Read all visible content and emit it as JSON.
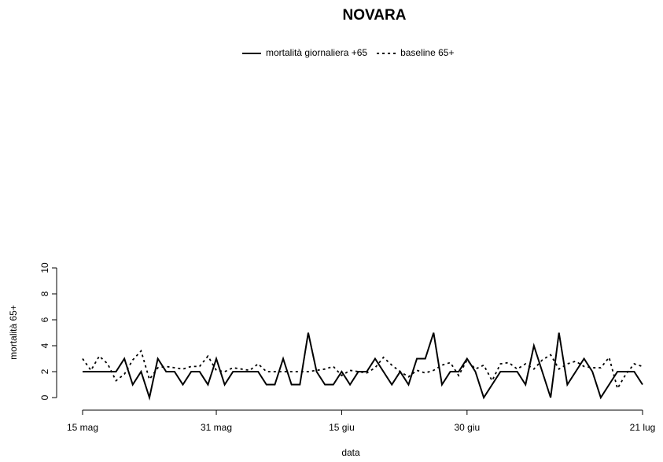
{
  "chart_data": {
    "type": "line",
    "title": "NOVARA",
    "x_label": "data",
    "y_label": "mortalità 65+",
    "categories": [
      "15 mag",
      null,
      null,
      null,
      null,
      null,
      null,
      null,
      null,
      null,
      null,
      null,
      null,
      null,
      null,
      null,
      "31 mag",
      null,
      null,
      null,
      null,
      null,
      null,
      null,
      null,
      null,
      null,
      null,
      null,
      null,
      null,
      "15 giu",
      null,
      null,
      null,
      null,
      null,
      null,
      null,
      null,
      null,
      null,
      null,
      null,
      null,
      null,
      "30 giu",
      null,
      null,
      null,
      null,
      null,
      null,
      null,
      null,
      null,
      null,
      null,
      null,
      null,
      null,
      null,
      null,
      null,
      null,
      null,
      null,
      "21 lug"
    ],
    "series": [
      {
        "name": "mortalità giornaliera +65",
        "color": "#000000",
        "linestyle": "solid",
        "values": [
          2,
          2,
          2,
          2,
          2,
          3,
          1,
          2,
          0,
          3,
          2,
          2,
          1,
          2,
          2,
          1,
          3,
          1,
          2,
          2,
          2,
          2,
          1,
          1,
          3,
          1,
          1,
          5,
          2,
          1,
          1,
          2,
          1,
          2,
          2,
          3,
          2,
          1,
          2,
          1,
          3,
          3,
          5,
          1,
          2,
          2,
          3,
          2,
          0,
          1,
          2,
          2,
          2,
          1,
          4,
          2,
          0,
          5,
          1,
          2,
          3,
          2,
          0,
          1,
          2,
          2,
          2,
          1
        ]
      },
      {
        "name": "baseline 65+",
        "color": "#000000",
        "linestyle": "dotted",
        "values": [
          3.0,
          2.1,
          3.2,
          2.6,
          1.3,
          1.8,
          2.9,
          3.6,
          1.4,
          2.3,
          2.4,
          2.3,
          2.2,
          2.4,
          2.4,
          3.2,
          2.1,
          2.0,
          2.3,
          2.2,
          2.1,
          2.6,
          2.0,
          2.0,
          2.0,
          2.0,
          2.0,
          2.0,
          2.1,
          2.2,
          2.4,
          1.7,
          2.1,
          2.0,
          1.9,
          2.3,
          3.1,
          2.5,
          2.0,
          1.6,
          2.1,
          1.9,
          2.1,
          2.5,
          2.7,
          1.7,
          2.9,
          2.2,
          2.5,
          1.3,
          2.6,
          2.7,
          2.2,
          2.6,
          2.2,
          2.9,
          3.3,
          2.2,
          2.6,
          2.8,
          2.4,
          2.3,
          2.3,
          3.1,
          0.7,
          1.8,
          2.6,
          2.4
        ]
      }
    ],
    "ylim": [
      0,
      10
    ],
    "yticks": [
      0,
      2,
      4,
      6,
      8,
      10
    ],
    "grid": false
  }
}
